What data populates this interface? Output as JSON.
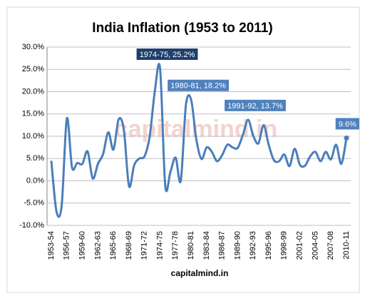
{
  "chart_data": {
    "type": "line",
    "title": "India Inflation (1953 to 2011)",
    "x_label": "capitalmind.in",
    "watermark": "capitalmind.in",
    "categories": [
      "1953-54",
      null,
      null,
      "1956-57",
      null,
      null,
      "1959-60",
      null,
      null,
      "1962-63",
      null,
      null,
      "1965-66",
      null,
      null,
      "1968-69",
      null,
      null,
      "1971-72",
      null,
      null,
      "1974-75",
      null,
      null,
      "1977-78",
      null,
      null,
      "1980-81",
      null,
      null,
      "1983-84",
      null,
      null,
      "1986-87",
      null,
      null,
      "1989-90",
      null,
      null,
      "1992-93",
      null,
      null,
      "1995-96",
      null,
      null,
      "1998-99",
      null,
      null,
      "2001-02",
      null,
      null,
      "2004-05",
      null,
      null,
      "2007-08",
      null,
      null,
      "2010-11"
    ],
    "series": [
      {
        "name": "Inflation",
        "color": "#4a7ebb",
        "values": [
          4.5,
          -6.9,
          -5.5,
          14.0,
          3.0,
          4.0,
          3.8,
          6.6,
          0.5,
          3.8,
          6.0,
          10.9,
          7.0,
          13.8,
          11.5,
          -1.2,
          3.5,
          5.0,
          5.5,
          10.0,
          20.2,
          25.2,
          -1.1,
          2.0,
          5.2,
          0.0,
          17.1,
          18.2,
          9.3,
          4.9,
          7.5,
          6.5,
          4.4,
          5.8,
          8.1,
          7.5,
          7.4,
          10.3,
          13.7,
          10.1,
          8.4,
          12.5,
          8.0,
          4.6,
          4.4,
          5.9,
          3.3,
          7.2,
          3.6,
          3.4,
          5.5,
          6.5,
          4.4,
          6.5,
          4.8,
          8.1,
          3.8,
          9.6
        ],
        "value_labels": [
          null,
          null,
          null,
          null,
          null,
          null,
          null,
          null,
          null,
          null,
          null,
          null,
          null,
          null,
          null,
          null,
          null,
          null,
          null,
          null,
          null,
          "1974-75, 25.2%",
          null,
          null,
          null,
          null,
          null,
          "1980-81, 18.2%",
          null,
          null,
          null,
          null,
          null,
          null,
          null,
          null,
          null,
          null,
          "1991-92, 13.7%",
          null,
          null,
          null,
          null,
          null,
          null,
          null,
          null,
          null,
          null,
          null,
          null,
          null,
          null,
          null,
          null,
          null,
          null,
          "9.6%"
        ]
      }
    ],
    "ylim": [
      -10,
      30
    ],
    "yticks": [
      {
        "value": -10,
        "label": "-10.0%"
      },
      {
        "value": -5,
        "label": "-5.0%"
      },
      {
        "value": 0,
        "label": "0.0%"
      },
      {
        "value": 5,
        "label": "5.0%"
      },
      {
        "value": 10,
        "label": "10.0%"
      },
      {
        "value": 15,
        "label": "15.0%"
      },
      {
        "value": 20,
        "label": "20.0%"
      },
      {
        "value": 25,
        "label": "25.0%"
      },
      {
        "value": 30,
        "label": "30.0%"
      }
    ],
    "grid": true
  }
}
